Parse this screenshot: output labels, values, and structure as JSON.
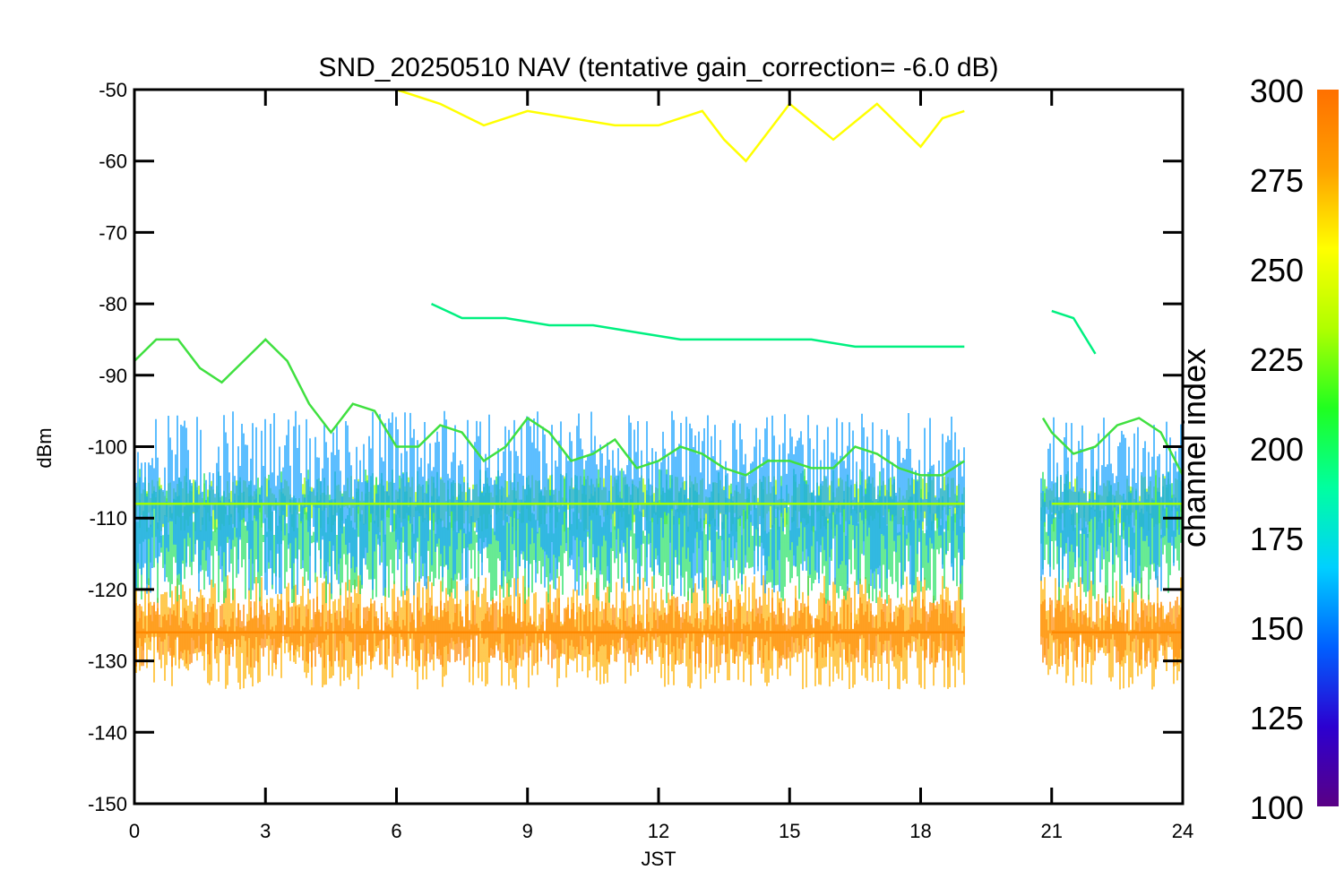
{
  "chart_data": {
    "type": "line",
    "title": "SND_20250510 NAV (tentative gain_correction= -6.0 dB)",
    "xlabel": "JST",
    "ylabel": "dBm",
    "xlim": [
      0,
      24
    ],
    "ylim": [
      -150,
      -50
    ],
    "x_ticks": [
      0,
      3,
      6,
      9,
      12,
      15,
      18,
      21,
      24
    ],
    "y_ticks": [
      -50,
      -60,
      -70,
      -80,
      -90,
      -100,
      -110,
      -120,
      -130,
      -140,
      -150
    ],
    "grid": false,
    "data_gap": [
      19.0,
      20.75
    ],
    "colorbar": {
      "label": "channel index",
      "range": [
        100,
        300
      ],
      "ticks": [
        300,
        275,
        250,
        225,
        200,
        175,
        150,
        125,
        100
      ],
      "colormap": "rainbow",
      "stops": [
        "#5a0085",
        "#2c00d0",
        "#0060ff",
        "#00d0ff",
        "#00ffa0",
        "#20ff20",
        "#b0ff00",
        "#ffff00",
        "#ffa000",
        "#ff7000"
      ]
    },
    "series": [
      {
        "color": "#40e040",
        "x": [
          0,
          0.5,
          1,
          1.5,
          2,
          2.5,
          3,
          3.5,
          4,
          4.5,
          5,
          5.5,
          6,
          6.5,
          7,
          7.5,
          8,
          8.5,
          9,
          9.5,
          10,
          10.5,
          11,
          11.5,
          12,
          12.5,
          13,
          13.5,
          14,
          14.5,
          15,
          15.5,
          16,
          16.5,
          17,
          17.5,
          18,
          18.5,
          19,
          20.8,
          21,
          21.5,
          22,
          22.5,
          23,
          23.5,
          24
        ],
        "y": [
          -88,
          -85,
          -85,
          -89,
          -91,
          -88,
          -85,
          -88,
          -94,
          -98,
          -94,
          -95,
          -100,
          -100,
          -97,
          -98,
          -102,
          -100,
          -96,
          -98,
          -102,
          -101,
          -99,
          -103,
          -102,
          -100,
          -101,
          -103,
          -104,
          -102,
          -102,
          -103,
          -103,
          -100,
          -101,
          -103,
          -104,
          -104,
          -102,
          -96,
          -98,
          -101,
          -100,
          -97,
          -96,
          -98,
          -104
        ]
      },
      {
        "color": "#ffff00",
        "x": [
          5.5,
          6,
          7,
          8,
          9,
          10,
          11,
          12,
          13,
          13.5,
          14,
          15,
          16,
          17,
          18,
          18.5,
          19
        ],
        "y": [
          -50,
          -50,
          -52,
          -55,
          -53,
          -54,
          -55,
          -55,
          -53,
          -57,
          -60,
          -52,
          -57,
          -52,
          -58,
          -54,
          -53
        ]
      },
      {
        "color": "#00f080",
        "x": [
          6.8,
          7.5,
          8.5,
          9.5,
          10.5,
          11.5,
          12.5,
          13.5,
          14.5,
          15.5,
          16.5,
          17.5,
          18.5,
          19,
          21,
          21.5,
          22
        ],
        "y": [
          -80,
          -82,
          -82,
          -83,
          -83,
          -84,
          -85,
          -85,
          -85,
          -85,
          -86,
          -86,
          -86,
          -86,
          -81,
          -82,
          -87
        ]
      },
      {
        "color": "#a0ff00",
        "x": [
          0,
          6,
          12,
          19,
          21,
          24
        ],
        "y": [
          -108,
          -108,
          -108,
          -108,
          -108,
          -108
        ]
      },
      {
        "color": "#ff8800",
        "x": [
          0,
          6,
          12,
          19,
          21,
          24
        ],
        "y": [
          -126,
          -126,
          -126,
          -126,
          -126,
          -126
        ]
      }
    ],
    "bands": [
      {
        "color": "#ffb000",
        "y": [
          -134,
          -118
        ]
      },
      {
        "color": "#ff8800",
        "y": [
          -131,
          -121
        ]
      },
      {
        "color": "#a0ff00",
        "y": [
          -112,
          -104
        ]
      },
      {
        "color": "#20e060",
        "y": [
          -122,
          -103
        ]
      },
      {
        "color": "#10a0ff",
        "y": [
          -121,
          -95
        ]
      }
    ]
  }
}
